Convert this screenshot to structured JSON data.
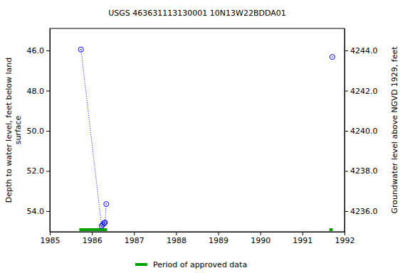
{
  "chart_data": {
    "type": "scatter",
    "title": "USGS 463631113130001 10N13W22BDDA01",
    "x_label": "",
    "y_label": "Depth to water level, feet below land surface",
    "y2_label": "Groundwater level above NGVD 1929, feet",
    "x": [
      1985.74,
      1986.23,
      1986.26,
      1986.29,
      1986.31,
      1986.34,
      null,
      1991.71
    ],
    "series": [
      {
        "color": "#0000ff",
        "marker": "circle",
        "line_style": "dotted",
        "values": [
          45.95,
          54.74,
          54.67,
          54.6,
          54.57,
          53.65,
          null,
          46.32
        ]
      }
    ],
    "approved_periods": {
      "name": "Period of approved data",
      "color": "#00a000",
      "ranges": [
        [
          1985.7,
          1986.36
        ],
        [
          1991.64,
          1991.72
        ]
      ]
    },
    "xlim": [
      1985,
      1992
    ],
    "xticks": [
      1985,
      1986,
      1987,
      1988,
      1989,
      1990,
      1991,
      1992
    ],
    "ylim": [
      44.9,
      55.03
    ],
    "yticks": [
      {
        "value": 46,
        "label": "46.0"
      },
      {
        "value": 48,
        "label": "48.0"
      },
      {
        "value": 50,
        "label": "50.0"
      },
      {
        "value": 52,
        "label": "52.0"
      },
      {
        "value": 54,
        "label": "54.0"
      }
    ],
    "y2lim": [
      4245.1,
      4234.97
    ],
    "y2ticks": [
      {
        "value": 4236,
        "label": "4236.0"
      },
      {
        "value": 4238,
        "label": "4238.0"
      },
      {
        "value": 4240,
        "label": "4240.0"
      },
      {
        "value": 4242,
        "label": "4242.0"
      },
      {
        "value": 4244,
        "label": "4244.0"
      }
    ],
    "legend": "bottom"
  }
}
